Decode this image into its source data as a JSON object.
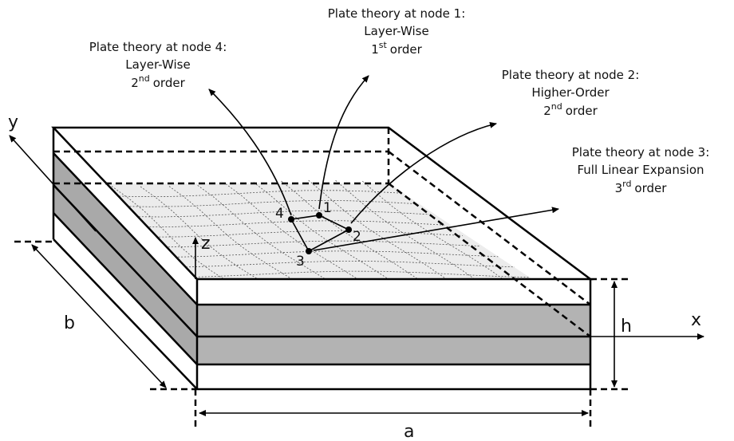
{
  "labels": [
    {
      "heading": "Plate theory at node 1:",
      "theory": "Layer-Wise",
      "order": "1",
      "suffix": "st",
      "word": "order"
    },
    {
      "heading": "Plate theory at node 2:",
      "theory": "Higher-Order",
      "order": "2",
      "suffix": "nd",
      "word": "order"
    },
    {
      "heading": "Plate theory at node 3:",
      "theory": "Full Linear Expansion",
      "order": "3",
      "suffix": "rd",
      "word": "order"
    },
    {
      "heading": "Plate theory at node 4:",
      "theory": "Layer-Wise",
      "order": "2",
      "suffix": "nd",
      "word": "order"
    }
  ],
  "nodes": [
    "1",
    "2",
    "3",
    "4"
  ],
  "axes": {
    "x": "x",
    "y": "y",
    "z": "z"
  },
  "dimensions": {
    "a": "a",
    "b": "b",
    "h": "h"
  }
}
